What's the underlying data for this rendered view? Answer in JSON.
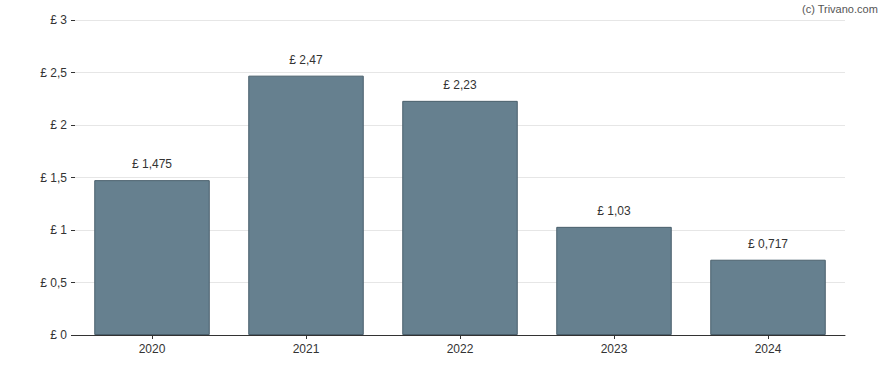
{
  "chart_data": {
    "type": "bar",
    "annotation": "(c) Trivano.com",
    "categories": [
      "2020",
      "2021",
      "2022",
      "2023",
      "2024"
    ],
    "values": [
      1.475,
      2.47,
      2.23,
      1.03,
      0.717
    ],
    "value_labels": [
      "£ 1,475",
      "£ 2,47",
      "£ 2,23",
      "£ 1,03",
      "£ 0,717"
    ],
    "data_labels": true,
    "color": "#66808f",
    "ylim": [
      0,
      3
    ],
    "yticks": [
      {
        "value": 0,
        "label": "£ 0"
      },
      {
        "value": 0.5,
        "label": "£ 0,5"
      },
      {
        "value": 1,
        "label": "£ 1"
      },
      {
        "value": 1.5,
        "label": "£ 1,5"
      },
      {
        "value": 2,
        "label": "£ 2"
      },
      {
        "value": 2.5,
        "label": "£ 2,5"
      },
      {
        "value": 3,
        "label": "£ 3"
      }
    ],
    "grid": true
  }
}
